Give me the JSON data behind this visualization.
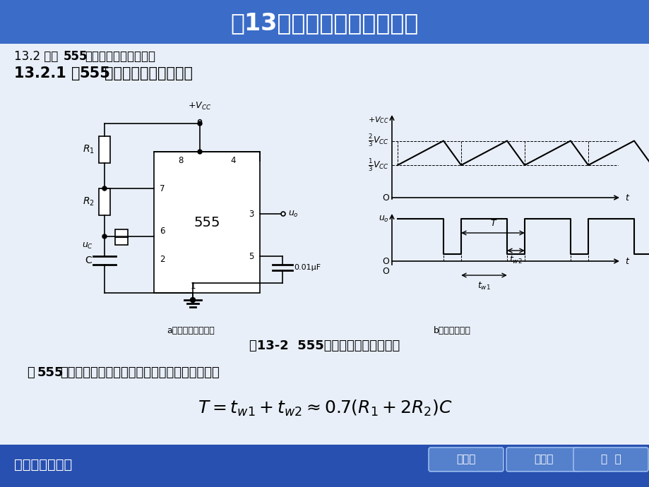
{
  "title": "第13章集成定时器及其应用",
  "title_bg_color": "#3B6CC8",
  "title_text_color": "#FFFFFF",
  "slide_bg_color": "#C8D8EE",
  "content_bg_color": "#E8EFF8",
  "footer_bg": "#2850B0",
  "footer_text": "机械工业出版社",
  "btn1": "上一页",
  "btn2": "下一页",
  "btn3": "退  出",
  "subtitle1": "13.2 集成",
  "subtitle1_bold": "555",
  "subtitle1_rest": "定时器的基本应用电路",
  "subtitle2_pre": "13.2.1 用",
  "subtitle2_bold": "555",
  "subtitle2_rest": "定时器构成多谐振荡器",
  "caption_a": "a）外部连线原理图",
  "caption_b": "b）工作波形图",
  "fig_caption": "图13-2  555电路构成的多谐振荡器",
  "body_pre": "在",
  "body_bold": "555",
  "body_rest": "电路的输出端就获得一个矩形波，其振荡周期为",
  "formula": "$T = t_{w1} + t_{w2} \\approx 0.7(R_1 + 2R_2)C$"
}
